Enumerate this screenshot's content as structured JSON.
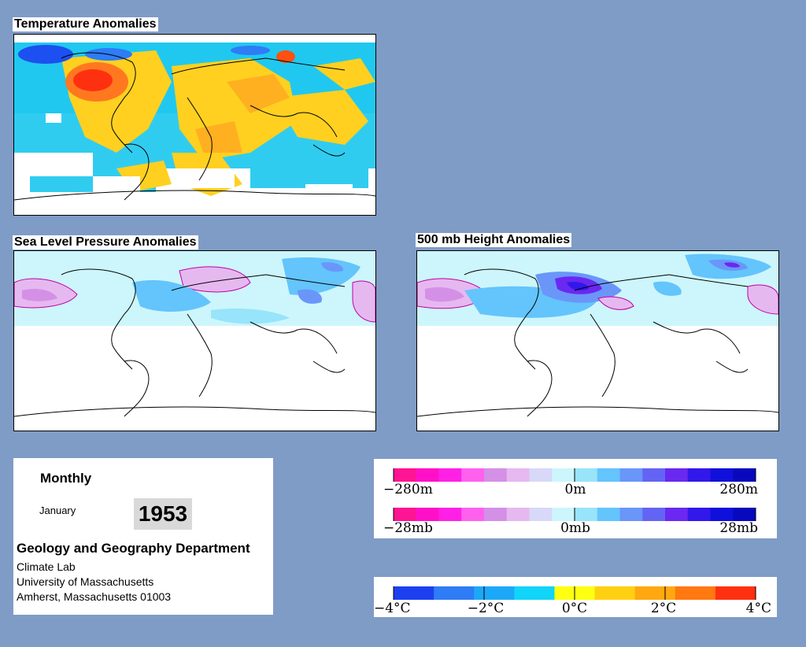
{
  "panels": {
    "temperature": {
      "title": "Temperature Anomalies"
    },
    "slp": {
      "title": "Sea Level Pressure Anomalies"
    },
    "height500": {
      "title": "500 mb Height Anomalies"
    }
  },
  "info": {
    "period": "Monthly",
    "month": "January",
    "year": "1953",
    "department": "Geology and Geography Department",
    "lab": "Climate Lab",
    "university": "University of Massachusetts",
    "address": "Amherst, Massachusetts 01003"
  },
  "legends": {
    "height": {
      "labels": [
        "−280m",
        "0m",
        "280m"
      ]
    },
    "pressure": {
      "labels": [
        "−28mb",
        "0mb",
        "28mb"
      ]
    },
    "temperature": {
      "labels": [
        "−4°C",
        "−2°C",
        "0°C",
        "2°C",
        "4°C"
      ]
    }
  },
  "colors": {
    "background": "#7f9cc6",
    "anomaly_scale": [
      "#ff1493",
      "#ff10c8",
      "#ff20e6",
      "#ff60ee",
      "#d490e6",
      "#e6b8f0",
      "#d8d8f8",
      "#ccf6fc",
      "#98e4fa",
      "#64c4fc",
      "#6a96fa",
      "#6464f4",
      "#6a28f0",
      "#3218ea",
      "#1010dc",
      "#0808bc"
    ],
    "temperature_scale": [
      "#1c40f0",
      "#2e7cf6",
      "#1ca8f8",
      "#10d4f8",
      "#ffff10",
      "#ffd010",
      "#ffa810",
      "#ff7810",
      "#ff3010"
    ]
  }
}
